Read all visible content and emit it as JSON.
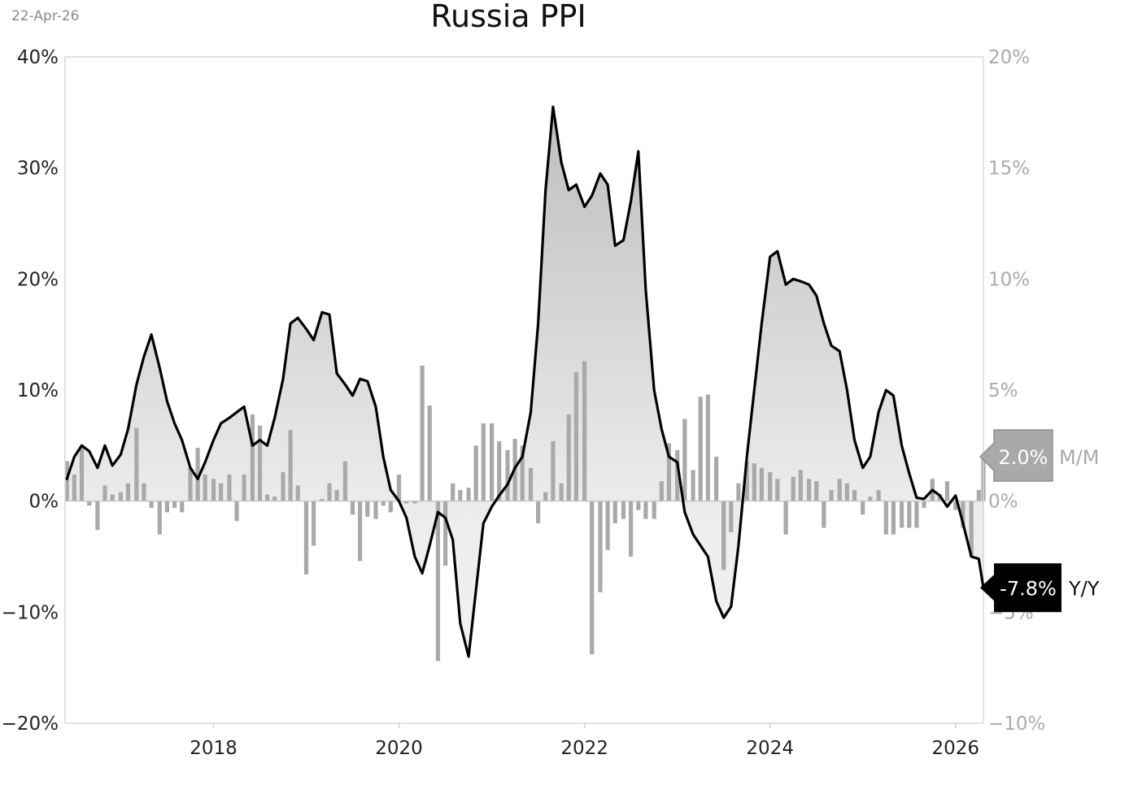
{
  "header": {
    "date": "22-Apr-26",
    "title": "Russia PPI"
  },
  "chart_data": {
    "type": "line",
    "title": "Russia PPI",
    "grid": false,
    "x_axis": {
      "range": [
        2016.4,
        2026.3
      ],
      "ticks": [
        "2018",
        "2020",
        "2022",
        "2024",
        "2026"
      ]
    },
    "y_left": {
      "range": [
        -20,
        40
      ],
      "unit": "%",
      "ticks": [
        "40%",
        "30%",
        "20%",
        "10%",
        "0%",
        "−10%",
        "−20%"
      ]
    },
    "y_right": {
      "range": [
        -10,
        20
      ],
      "unit": "%",
      "ticks": [
        "20%",
        "15%",
        "10%",
        "5%",
        "0%",
        "−5%",
        "−10%"
      ]
    },
    "series": [
      {
        "name": "Y/Y",
        "axis": "left",
        "kind": "line-area",
        "color": "#000000",
        "last_label": "-7.8%",
        "points": [
          [
            2016.42,
            2.0
          ],
          [
            2016.5,
            4.0
          ],
          [
            2016.58,
            5.0
          ],
          [
            2016.66,
            4.5
          ],
          [
            2016.75,
            3.0
          ],
          [
            2016.83,
            5.0
          ],
          [
            2016.91,
            3.2
          ],
          [
            2017.0,
            4.2
          ],
          [
            2017.08,
            6.5
          ],
          [
            2017.17,
            10.5
          ],
          [
            2017.25,
            13.0
          ],
          [
            2017.33,
            15.0
          ],
          [
            2017.42,
            12.0
          ],
          [
            2017.5,
            9.0
          ],
          [
            2017.58,
            7.0
          ],
          [
            2017.66,
            5.5
          ],
          [
            2017.75,
            3.0
          ],
          [
            2017.83,
            2.0
          ],
          [
            2017.91,
            3.5
          ],
          [
            2018.0,
            5.5
          ],
          [
            2018.08,
            7.0
          ],
          [
            2018.17,
            7.5
          ],
          [
            2018.25,
            8.0
          ],
          [
            2018.33,
            8.5
          ],
          [
            2018.42,
            5.0
          ],
          [
            2018.5,
            5.5
          ],
          [
            2018.58,
            5.0
          ],
          [
            2018.66,
            7.5
          ],
          [
            2018.75,
            11.0
          ],
          [
            2018.83,
            16.0
          ],
          [
            2018.91,
            16.5
          ],
          [
            2019.0,
            15.5
          ],
          [
            2019.08,
            14.5
          ],
          [
            2019.17,
            17.0
          ],
          [
            2019.25,
            16.8
          ],
          [
            2019.33,
            11.5
          ],
          [
            2019.42,
            10.5
          ],
          [
            2019.5,
            9.5
          ],
          [
            2019.58,
            11.0
          ],
          [
            2019.66,
            10.8
          ],
          [
            2019.75,
            8.5
          ],
          [
            2019.83,
            4.0
          ],
          [
            2019.91,
            1.0
          ],
          [
            2020.0,
            0.0
          ],
          [
            2020.08,
            -1.5
          ],
          [
            2020.17,
            -5.0
          ],
          [
            2020.25,
            -6.5
          ],
          [
            2020.33,
            -4.0
          ],
          [
            2020.42,
            -1.0
          ],
          [
            2020.5,
            -1.5
          ],
          [
            2020.58,
            -3.5
          ],
          [
            2020.66,
            -11.0
          ],
          [
            2020.75,
            -14.0
          ],
          [
            2020.83,
            -8.0
          ],
          [
            2020.91,
            -2.0
          ],
          [
            2021.0,
            -0.5
          ],
          [
            2021.08,
            0.5
          ],
          [
            2021.17,
            1.5
          ],
          [
            2021.25,
            3.0
          ],
          [
            2021.33,
            4.0
          ],
          [
            2021.42,
            8.0
          ],
          [
            2021.5,
            16.0
          ],
          [
            2021.58,
            28.0
          ],
          [
            2021.66,
            35.5
          ],
          [
            2021.75,
            30.5
          ],
          [
            2021.83,
            28.0
          ],
          [
            2021.91,
            28.5
          ],
          [
            2022.0,
            26.5
          ],
          [
            2022.08,
            27.5
          ],
          [
            2022.17,
            29.5
          ],
          [
            2022.25,
            28.5
          ],
          [
            2022.33,
            23.0
          ],
          [
            2022.42,
            23.5
          ],
          [
            2022.5,
            27.0
          ],
          [
            2022.58,
            31.5
          ],
          [
            2022.66,
            19.0
          ],
          [
            2022.75,
            10.0
          ],
          [
            2022.83,
            6.5
          ],
          [
            2022.91,
            4.0
          ],
          [
            2023.0,
            3.5
          ],
          [
            2023.08,
            -1.0
          ],
          [
            2023.17,
            -3.0
          ],
          [
            2023.25,
            -4.0
          ],
          [
            2023.33,
            -5.0
          ],
          [
            2023.42,
            -9.0
          ],
          [
            2023.5,
            -10.5
          ],
          [
            2023.58,
            -9.5
          ],
          [
            2023.66,
            -4.0
          ],
          [
            2023.75,
            4.0
          ],
          [
            2023.83,
            10.0
          ],
          [
            2023.91,
            16.0
          ],
          [
            2024.0,
            22.0
          ],
          [
            2024.08,
            22.5
          ],
          [
            2024.17,
            19.5
          ],
          [
            2024.25,
            20.0
          ],
          [
            2024.33,
            19.8
          ],
          [
            2024.42,
            19.5
          ],
          [
            2024.5,
            18.5
          ],
          [
            2024.58,
            16.0
          ],
          [
            2024.66,
            14.0
          ],
          [
            2024.75,
            13.5
          ],
          [
            2024.83,
            10.0
          ],
          [
            2024.91,
            5.5
          ],
          [
            2025.0,
            3.0
          ],
          [
            2025.08,
            4.0
          ],
          [
            2025.17,
            8.0
          ],
          [
            2025.25,
            10.0
          ],
          [
            2025.33,
            9.5
          ],
          [
            2025.42,
            5.0
          ],
          [
            2025.5,
            2.5
          ],
          [
            2025.58,
            0.3
          ],
          [
            2025.66,
            0.2
          ],
          [
            2025.75,
            1.0
          ],
          [
            2025.83,
            0.5
          ],
          [
            2025.91,
            -0.5
          ],
          [
            2026.0,
            0.5
          ],
          [
            2026.08,
            -2.0
          ],
          [
            2026.17,
            -5.0
          ],
          [
            2026.25,
            -5.2
          ],
          [
            2026.3,
            -7.8
          ]
        ]
      },
      {
        "name": "M/M",
        "axis": "right",
        "kind": "bar",
        "color": "#a9a9a9",
        "last_label": "2.0%",
        "points": [
          [
            2016.42,
            1.8
          ],
          [
            2016.5,
            1.2
          ],
          [
            2016.58,
            2.5
          ],
          [
            2016.66,
            -0.2
          ],
          [
            2016.75,
            -1.3
          ],
          [
            2016.83,
            0.7
          ],
          [
            2016.91,
            0.3
          ],
          [
            2017.0,
            0.4
          ],
          [
            2017.08,
            0.8
          ],
          [
            2017.17,
            3.3
          ],
          [
            2017.25,
            0.8
          ],
          [
            2017.33,
            -0.3
          ],
          [
            2017.42,
            -1.5
          ],
          [
            2017.5,
            -0.5
          ],
          [
            2017.58,
            -0.3
          ],
          [
            2017.66,
            -0.5
          ],
          [
            2017.75,
            1.5
          ],
          [
            2017.83,
            2.4
          ],
          [
            2017.91,
            1.2
          ],
          [
            2018.0,
            1.0
          ],
          [
            2018.08,
            0.8
          ],
          [
            2018.17,
            1.2
          ],
          [
            2018.25,
            -0.9
          ],
          [
            2018.33,
            1.2
          ],
          [
            2018.42,
            3.9
          ],
          [
            2018.5,
            3.4
          ],
          [
            2018.58,
            0.3
          ],
          [
            2018.66,
            0.2
          ],
          [
            2018.75,
            1.3
          ],
          [
            2018.83,
            3.2
          ],
          [
            2018.91,
            0.7
          ],
          [
            2019.0,
            -3.3
          ],
          [
            2019.08,
            -2.0
          ],
          [
            2019.17,
            0.1
          ],
          [
            2019.25,
            0.8
          ],
          [
            2019.33,
            0.5
          ],
          [
            2019.42,
            1.8
          ],
          [
            2019.5,
            -0.6
          ],
          [
            2019.58,
            -2.7
          ],
          [
            2019.66,
            -0.7
          ],
          [
            2019.75,
            -0.8
          ],
          [
            2019.83,
            -0.2
          ],
          [
            2019.91,
            -0.5
          ],
          [
            2020.0,
            1.2
          ],
          [
            2020.08,
            -0.1
          ],
          [
            2020.17,
            -0.1
          ],
          [
            2020.25,
            6.1
          ],
          [
            2020.33,
            4.3
          ],
          [
            2020.42,
            -7.2
          ],
          [
            2020.5,
            -2.9
          ],
          [
            2020.58,
            0.8
          ],
          [
            2020.66,
            0.5
          ],
          [
            2020.75,
            0.6
          ],
          [
            2020.83,
            2.5
          ],
          [
            2020.91,
            3.5
          ],
          [
            2021.0,
            3.5
          ],
          [
            2021.08,
            2.7
          ],
          [
            2021.17,
            2.3
          ],
          [
            2021.25,
            2.8
          ],
          [
            2021.33,
            2.5
          ],
          [
            2021.42,
            1.5
          ],
          [
            2021.5,
            -1.0
          ],
          [
            2021.58,
            0.4
          ],
          [
            2021.66,
            2.7
          ],
          [
            2021.75,
            0.8
          ],
          [
            2021.83,
            3.9
          ],
          [
            2021.91,
            5.8
          ],
          [
            2022.0,
            6.3
          ],
          [
            2022.08,
            -6.9
          ],
          [
            2022.17,
            -4.1
          ],
          [
            2022.25,
            -2.2
          ],
          [
            2022.33,
            -1.0
          ],
          [
            2022.42,
            -0.8
          ],
          [
            2022.5,
            -2.5
          ],
          [
            2022.58,
            -0.4
          ],
          [
            2022.66,
            -0.8
          ],
          [
            2022.75,
            -0.8
          ],
          [
            2022.83,
            0.9
          ],
          [
            2022.91,
            2.6
          ],
          [
            2023.0,
            2.3
          ],
          [
            2023.08,
            3.7
          ],
          [
            2023.17,
            1.4
          ],
          [
            2023.25,
            4.7
          ],
          [
            2023.33,
            4.8
          ],
          [
            2023.42,
            2.0
          ],
          [
            2023.5,
            -3.1
          ],
          [
            2023.58,
            -1.4
          ],
          [
            2023.66,
            0.8
          ],
          [
            2023.75,
            1.8
          ],
          [
            2023.83,
            1.7
          ],
          [
            2023.91,
            1.5
          ],
          [
            2024.0,
            1.3
          ],
          [
            2024.08,
            1.0
          ],
          [
            2024.17,
            -1.5
          ],
          [
            2024.25,
            1.1
          ],
          [
            2024.33,
            1.4
          ],
          [
            2024.42,
            1.0
          ],
          [
            2024.5,
            0.9
          ],
          [
            2024.58,
            -1.2
          ],
          [
            2024.66,
            0.5
          ],
          [
            2024.75,
            1.0
          ],
          [
            2024.83,
            0.8
          ],
          [
            2024.91,
            0.5
          ],
          [
            2025.0,
            -0.6
          ],
          [
            2025.08,
            0.2
          ],
          [
            2025.17,
            0.5
          ],
          [
            2025.25,
            -1.5
          ],
          [
            2025.33,
            -1.5
          ],
          [
            2025.42,
            -1.2
          ],
          [
            2025.5,
            -1.2
          ],
          [
            2025.58,
            -1.2
          ],
          [
            2025.66,
            -0.3
          ],
          [
            2025.75,
            1.0
          ],
          [
            2025.83,
            0.3
          ],
          [
            2025.91,
            0.9
          ],
          [
            2026.0,
            -0.4
          ],
          [
            2026.08,
            -1.2
          ],
          [
            2026.17,
            -2.5
          ],
          [
            2026.25,
            0.5
          ],
          [
            2026.3,
            2.0
          ]
        ]
      }
    ]
  }
}
